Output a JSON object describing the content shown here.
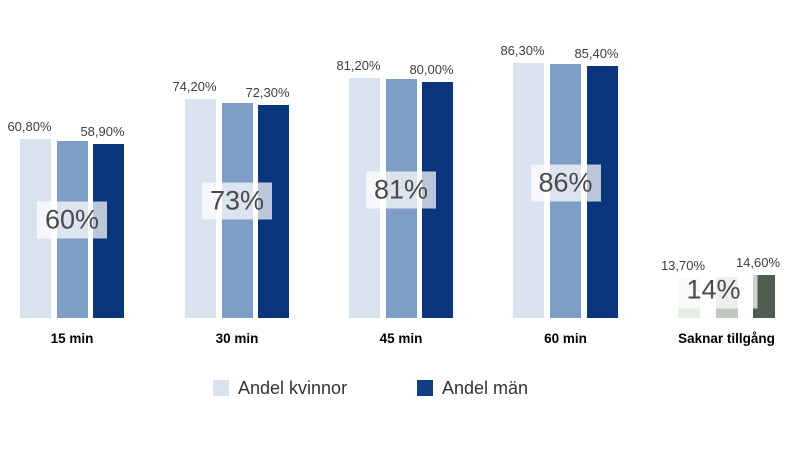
{
  "chart_data": {
    "type": "bar",
    "title": "",
    "xlabel": "",
    "ylabel": "",
    "ylim": [
      0,
      100
    ],
    "grid": false,
    "legend_position": "bottom",
    "categories": [
      "15 min",
      "30 min",
      "45 min",
      "60 min",
      "Saknar tillgång"
    ],
    "series": [
      {
        "name": "Andel kvinnor",
        "values": [
          60.8,
          74.2,
          81.2,
          86.3,
          13.7
        ],
        "value_labels": [
          "60,80%",
          "74,20%",
          "81,20%",
          "86,30%",
          "13,70%"
        ]
      },
      {
        "name": "",
        "note": "unlabeled middle bar, approximately the group total",
        "values": [
          60,
          73,
          81,
          86,
          14
        ],
        "value_labels": null
      },
      {
        "name": "Andel män",
        "values": [
          58.9,
          72.3,
          80.0,
          85.4,
          14.6
        ],
        "value_labels": [
          "58,90%",
          "72,30%",
          "80,00%",
          "85,40%",
          "14,60%"
        ]
      }
    ],
    "group_totals": [
      "60%",
      "73%",
      "81%",
      "86%",
      "14%"
    ],
    "colors": {
      "blue_groups": [
        "#d9e2ef",
        "#7e9dc7",
        "#0a367b"
      ],
      "saknar_group": [
        "#e7ece7",
        "#bfc9c0",
        "#4e5f52"
      ]
    }
  },
  "legend": {
    "items": [
      {
        "label": "Andel kvinnor",
        "color": "#d9e2ef"
      },
      {
        "label": "Andel män",
        "color": "#123f86"
      }
    ]
  },
  "styles": {
    "background": "#ffffff",
    "value_label_color": "#3e3e3e",
    "category_label_color": "#000000",
    "total_label_color": "#4a4a4a",
    "total_box_bg": "rgba(255,255,255,0.72)"
  }
}
